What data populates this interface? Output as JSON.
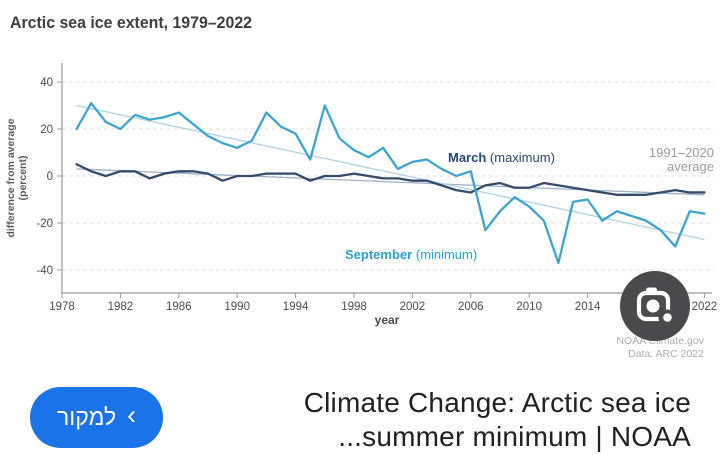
{
  "chart_data": {
    "type": "line",
    "title": "Arctic sea ice extent, 1979–2022",
    "xlabel": "year",
    "ylabel": "difference from average (percent)",
    "ylabel_lines": [
      "difference from average",
      "(percent)"
    ],
    "xlim": [
      1978,
      2023
    ],
    "ylim": [
      -48,
      46
    ],
    "xticks": [
      1978,
      1982,
      1986,
      1990,
      1994,
      1998,
      2002,
      2006,
      2010,
      2014,
      2018,
      2022
    ],
    "yticks": [
      40,
      20,
      0,
      -20,
      -40
    ],
    "grid": "horizontal-dashed",
    "legend_position": "inline-annotations",
    "x": [
      1979,
      1980,
      1981,
      1982,
      1983,
      1984,
      1985,
      1986,
      1987,
      1988,
      1989,
      1990,
      1991,
      1992,
      1993,
      1994,
      1995,
      1996,
      1997,
      1998,
      1999,
      2000,
      2001,
      2002,
      2003,
      2004,
      2005,
      2006,
      2007,
      2008,
      2009,
      2010,
      2011,
      2012,
      2013,
      2014,
      2015,
      2016,
      2017,
      2018,
      2019,
      2020,
      2021,
      2022
    ],
    "series": [
      {
        "name": "March (maximum)",
        "color": "#344B6B",
        "values": [
          5,
          2,
          0,
          2,
          2,
          -1,
          1,
          2,
          2,
          1,
          -2,
          0,
          0,
          1,
          1,
          1,
          -2,
          0,
          0,
          1,
          0,
          -1,
          -1,
          -2,
          -2,
          -4,
          -6,
          -7,
          -4,
          -3,
          -5,
          -5,
          -3,
          -4,
          -5,
          -6,
          -7,
          -8,
          -8,
          -8,
          -7,
          -6,
          -7,
          -7
        ]
      },
      {
        "name": "September (minimum)",
        "color": "#3FA5CC",
        "values": [
          20,
          31,
          23,
          20,
          26,
          24,
          25,
          27,
          22,
          17,
          14,
          12,
          15,
          27,
          21,
          18,
          7,
          30,
          16,
          11,
          8,
          12,
          3,
          6,
          7,
          3,
          0,
          2,
          -23,
          -15,
          -9,
          -13,
          -19,
          -37,
          -11,
          -10,
          -19,
          -15,
          -17,
          -19,
          -23,
          -30,
          -15,
          -16
        ]
      },
      {
        "name": "March trend line",
        "role": "trend",
        "color": "#9FAFC4",
        "points": [
          [
            1979,
            3
          ],
          [
            2022,
            -8
          ]
        ]
      },
      {
        "name": "September trend line",
        "role": "trend",
        "color": "#AFD3E3",
        "points": [
          [
            1979,
            30
          ],
          [
            2022,
            -27
          ]
        ]
      }
    ],
    "reference_line": {
      "label": "1991–2020 average",
      "value": 0
    }
  },
  "chart_labels": {
    "annotations": {
      "march": {
        "bold": "March",
        "rest": " (maximum)",
        "color": "#27486F"
      },
      "september": {
        "bold": "September",
        "rest": " (minimum)",
        "color": "#2D9FC9"
      },
      "average": {
        "line1": "1991–2020",
        "line2": "average",
        "color": "#9C9C9C"
      }
    },
    "attribution": {
      "line1": "NOAA Climate.gov",
      "line2": "Data: ARC 2022",
      "color": "#ABABAB"
    }
  },
  "lens": {
    "icon": "camera-lens-icon",
    "circle_color": "#4a4a4d"
  },
  "result": {
    "caption_line1": "Climate Change: Arctic sea ice",
    "caption_line2": "...summer minimum | NOAA",
    "button": {
      "label": "למקור",
      "chevron": "‹",
      "color": "#1a73e8"
    }
  }
}
